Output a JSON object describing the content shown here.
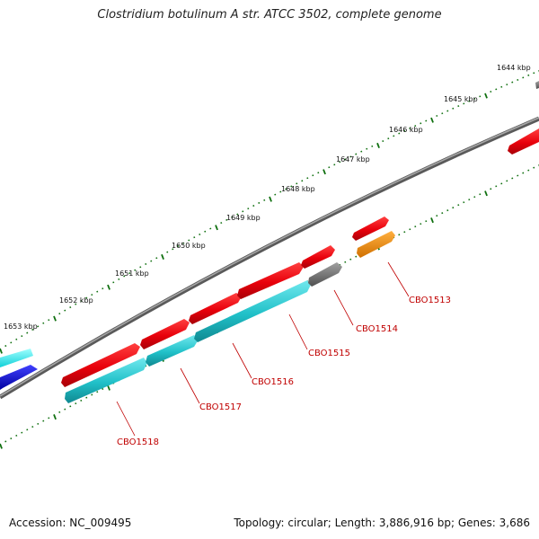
{
  "title": "Clostridium botulinum A str. ATCC 3502, complete genome",
  "footer": {
    "accession": "Accession: NC_009495",
    "topology": "Topology: circular; Length: 3,886,916 bp; Genes: 3,686"
  },
  "scale_labels": [
    "1644 kbp",
    "1645 kbp",
    "1646 kbp",
    "1647 kbp",
    "1648 kbp",
    "1649 kbp",
    "1650 kbp",
    "1651 kbp",
    "1652 kbp",
    "1653 kbp"
  ],
  "gene_labels": [
    "CBO1513",
    "CBO1514",
    "CBO1515",
    "CBO1516",
    "CBO1517",
    "CBO1518"
  ],
  "colors": {
    "forward_cds": "#e8000b",
    "reverse_cds": "#20c0c8",
    "backbone": "#808080",
    "tick": "#107010",
    "label": "#c00000",
    "orange": "#f08c00",
    "gray_gene": "#707070",
    "blue": "#1010d0",
    "cyan": "#10f0f0"
  }
}
